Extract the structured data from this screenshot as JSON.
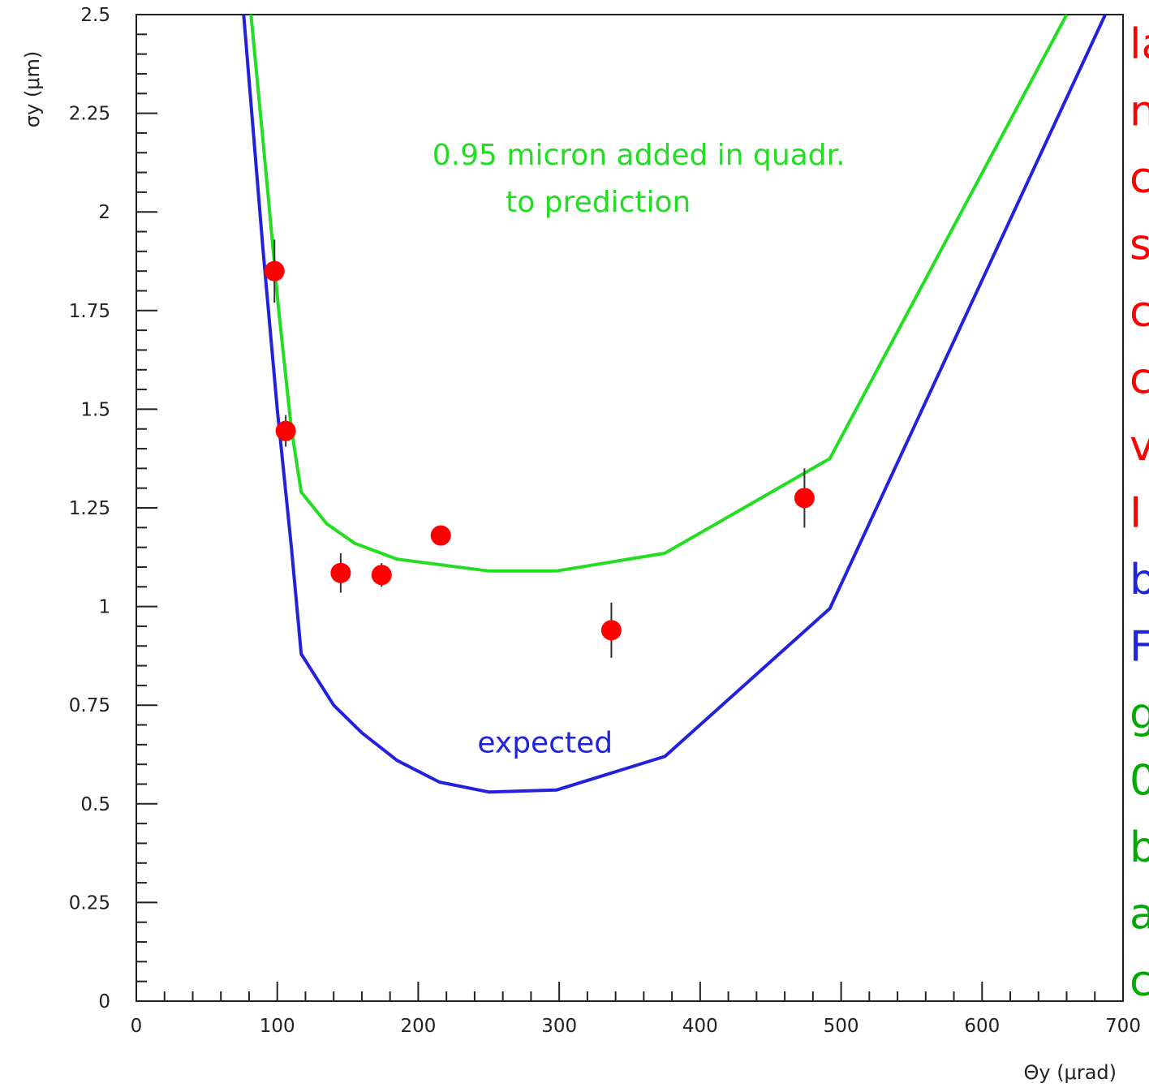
{
  "chart_data": {
    "type": "scatter",
    "title": "",
    "xlabel": "Θy (μrad)",
    "ylabel": "σy (μm)",
    "xlim": [
      0,
      700
    ],
    "ylim": [
      0,
      2.5
    ],
    "x_ticks": [
      "0",
      "100",
      "200",
      "300",
      "400",
      "500",
      "600",
      "700"
    ],
    "y_ticks": [
      "0",
      "0.25",
      "0.5",
      "0.75",
      "1",
      "1.25",
      "1.5",
      "1.75",
      "2",
      "2.25",
      "2.5"
    ],
    "grid": false,
    "series": [
      {
        "name": "",
        "kind": "points",
        "color": "#ff0000",
        "points": [
          {
            "x": 98,
            "y": 1.85,
            "err": 0.08
          },
          {
            "x": 106,
            "y": 1.445,
            "err": 0.04
          },
          {
            "x": 145,
            "y": 1.085,
            "err": 0.05
          },
          {
            "x": 174,
            "y": 1.08,
            "err": 0.03
          },
          {
            "x": 216,
            "y": 1.18,
            "err": 0.02
          },
          {
            "x": 337,
            "y": 0.94,
            "err": 0.07
          },
          {
            "x": 474,
            "y": 1.275,
            "err": 0.075
          }
        ]
      },
      {
        "name": "expected",
        "kind": "line",
        "color": "#2222dd",
        "points": [
          {
            "x": 75,
            "y": 2.55
          },
          {
            "x": 90,
            "y": 1.9
          },
          {
            "x": 100,
            "y": 1.5
          },
          {
            "x": 110,
            "y": 1.15
          },
          {
            "x": 117,
            "y": 0.88
          },
          {
            "x": 140,
            "y": 0.75
          },
          {
            "x": 160,
            "y": 0.68
          },
          {
            "x": 185,
            "y": 0.61
          },
          {
            "x": 215,
            "y": 0.555
          },
          {
            "x": 250,
            "y": 0.53
          },
          {
            "x": 298,
            "y": 0.535
          },
          {
            "x": 375,
            "y": 0.62
          },
          {
            "x": 492,
            "y": 0.995
          },
          {
            "x": 690,
            "y": 2.52
          }
        ]
      },
      {
        "name": "0.95 micron added in quadr. to prediction",
        "kind": "line",
        "color": "#22dd22",
        "points": [
          {
            "x": 80,
            "y": 2.55
          },
          {
            "x": 92,
            "y": 2.1
          },
          {
            "x": 101,
            "y": 1.75
          },
          {
            "x": 110,
            "y": 1.45
          },
          {
            "x": 117,
            "y": 1.29
          },
          {
            "x": 135,
            "y": 1.21
          },
          {
            "x": 155,
            "y": 1.16
          },
          {
            "x": 185,
            "y": 1.12
          },
          {
            "x": 250,
            "y": 1.09
          },
          {
            "x": 298,
            "y": 1.09
          },
          {
            "x": 375,
            "y": 1.135
          },
          {
            "x": 492,
            "y": 1.375
          },
          {
            "x": 660,
            "y": 2.5
          }
        ]
      }
    ],
    "annotations": [
      {
        "text": "0.95 micron added in quadr.",
        "x": 210,
        "y": 2.12,
        "color": "#22dd22"
      },
      {
        "text": "to prediction",
        "x": 262,
        "y": 2.0,
        "color": "#22dd22"
      },
      {
        "text": "expected",
        "x": 242,
        "y": 0.63,
        "color": "#2222dd"
      }
    ]
  },
  "side_text": [
    {
      "text": "la",
      "color": "#ff0000"
    },
    {
      "text": "n",
      "color": "#ff0000"
    },
    {
      "text": "c",
      "color": "#ff0000"
    },
    {
      "text": "s",
      "color": "#ff0000"
    },
    {
      "text": "c",
      "color": "#ff0000"
    },
    {
      "text": "c",
      "color": "#ff0000"
    },
    {
      "text": "v",
      "color": "#ff0000"
    },
    {
      "text": "I",
      "color": "#ff0000"
    },
    {
      "text": "b",
      "color": "#2222dd"
    },
    {
      "text": "F",
      "color": "#2222dd"
    },
    {
      "text": "g",
      "color": "#00aa00"
    },
    {
      "text": "0",
      "color": "#00aa00"
    },
    {
      "text": "b",
      "color": "#00aa00"
    },
    {
      "text": "a",
      "color": "#00aa00"
    },
    {
      "text": "c",
      "color": "#00aa00"
    }
  ]
}
